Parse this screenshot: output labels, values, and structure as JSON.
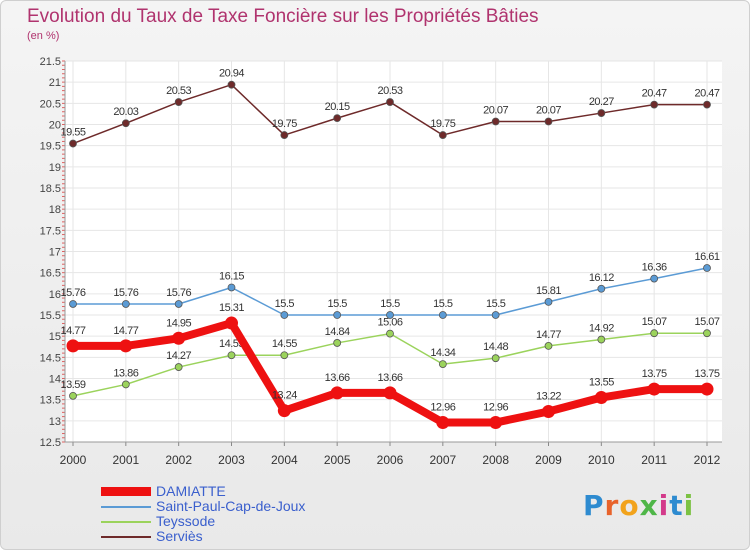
{
  "chart_data": {
    "type": "line",
    "title": "Evolution du Taux de Taxe Foncière sur les Propriétés Bâties",
    "ylabel": "(en %)",
    "x": [
      "2000",
      "2001",
      "2002",
      "2003",
      "2004",
      "2005",
      "2006",
      "2007",
      "2008",
      "2009",
      "2010",
      "2011",
      "2012"
    ],
    "ylim": [
      12.5,
      21.5
    ],
    "yticks": [
      "12.5",
      "13",
      "13.5",
      "14",
      "14.5",
      "15",
      "15.5",
      "16",
      "16.5",
      "17",
      "17.5",
      "18",
      "18.5",
      "19",
      "19.5",
      "20",
      "20.5",
      "21",
      "21.5"
    ],
    "series": [
      {
        "name": "DAMIATTE",
        "color": "#ee1111",
        "values": [
          14.77,
          14.77,
          14.95,
          15.31,
          13.24,
          13.66,
          13.66,
          12.96,
          12.96,
          13.22,
          13.55,
          13.75,
          13.75
        ],
        "labels": [
          "14.77",
          "14.77",
          "14.95",
          "15.31",
          "13.24",
          "13.66",
          "13.66",
          "12.96",
          "12.96",
          "13.22",
          "13.55",
          "13.75",
          "13.75"
        ]
      },
      {
        "name": "Saint-Paul-Cap-de-Joux",
        "color": "#5b9bd5",
        "values": [
          15.76,
          15.76,
          15.76,
          16.15,
          15.5,
          15.5,
          15.5,
          15.5,
          15.5,
          15.81,
          16.12,
          16.36,
          16.61
        ],
        "labels": [
          "15.76",
          "15.76",
          "15.76",
          "16.15",
          "15.5",
          "15.5",
          "15.5",
          "15.5",
          "15.5",
          "15.81",
          "16.12",
          "16.36",
          "16.61"
        ]
      },
      {
        "name": "Teyssode",
        "color": "#9bd35c",
        "values": [
          13.59,
          13.86,
          14.27,
          14.55,
          14.55,
          14.84,
          15.06,
          14.34,
          14.48,
          14.77,
          14.92,
          15.07,
          15.07
        ],
        "labels": [
          "13.59",
          "13.86",
          "14.27",
          "14.55",
          "14.55",
          "14.84",
          "15.06",
          "14.34",
          "14.48",
          "14.77",
          "14.92",
          "15.07",
          "15.07"
        ]
      },
      {
        "name": "Serviès",
        "color": "#6e2a2a",
        "values": [
          19.55,
          20.03,
          20.53,
          20.94,
          19.75,
          20.15,
          20.53,
          19.75,
          20.07,
          20.07,
          20.27,
          20.47,
          20.47
        ],
        "labels": [
          "19.55",
          "20.03",
          "20.53",
          "20.94",
          "19.75",
          "20.15",
          "20.53",
          "19.75",
          "20.07",
          "20.07",
          "20.27",
          "20.47",
          "20.47"
        ]
      }
    ]
  },
  "legend": {
    "items": [
      "DAMIATTE",
      "Saint-Paul-Cap-de-Joux",
      "Teyssode",
      "Serviès"
    ]
  },
  "logo": {
    "letters": [
      "P",
      "r",
      "o",
      "x",
      "i",
      "t",
      "i"
    ]
  }
}
